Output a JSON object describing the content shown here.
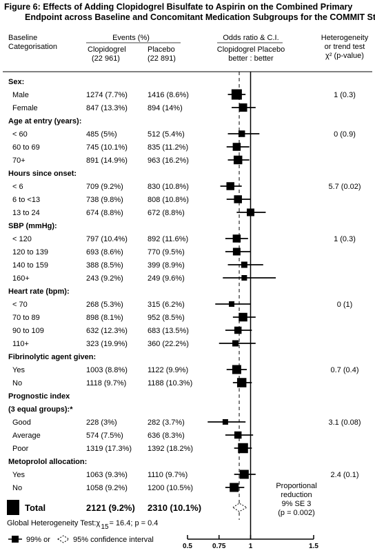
{
  "title_lines": [
    "Figure 6: Effects of Adding Clopidogrel Bisulfate to Aspirin on the Combined Primary",
    "Endpoint across Baseline and Concomitant Medication Subgroups for the COMMIT Study"
  ],
  "headers": {
    "baseline": [
      "Baseline",
      "Categorisation"
    ],
    "events": "Events (%)",
    "clop": [
      "Clopidogrel",
      "(22 961)"
    ],
    "plac": [
      "Placebo",
      "(22 891)"
    ],
    "or": "Odds ratio & C.I.",
    "favor": [
      "Clopidogrel Placebo",
      "better : better"
    ],
    "het": [
      "Heterogeneity",
      "or trend test",
      "χ² (p-value)"
    ]
  },
  "chart_data": {
    "type": "forest",
    "x_axis": {
      "min": 0.5,
      "max": 1.5,
      "ticks": [
        0.5,
        0.75,
        1,
        1.5
      ],
      "tick_labels": [
        "0.5",
        "0.75",
        "1",
        "1.5"
      ]
    },
    "reference_line": 1,
    "overall_dashed_line": 0.91,
    "groups": [
      {
        "label": "Sex:",
        "het": "1 (0.3)",
        "rows": [
          {
            "label": "Male",
            "clop": "1274 (7.7%)",
            "plac": "1416 (8.6%)",
            "or": 0.89,
            "lo": 0.82,
            "hi": 0.96,
            "weight": 1.0
          },
          {
            "label": "Female",
            "clop": "847 (13.3%)",
            "plac": "894 (14%)",
            "or": 0.94,
            "lo": 0.85,
            "hi": 1.04,
            "weight": 0.7
          }
        ]
      },
      {
        "label": "Age at entry (years):",
        "het": "0 (0.9)",
        "rows": [
          {
            "label": "< 60",
            "clop": "485 (5%)",
            "plac": "512 (5.4%)",
            "or": 0.93,
            "lo": 0.82,
            "hi": 1.07,
            "weight": 0.45
          },
          {
            "label": "60 to 69",
            "clop": "745 (10.1%)",
            "plac": "835 (11.2%)",
            "or": 0.89,
            "lo": 0.81,
            "hi": 0.99,
            "weight": 0.65
          },
          {
            "label": "70+",
            "clop": "891 (14.9%)",
            "plac": "963 (16.2%)",
            "or": 0.9,
            "lo": 0.82,
            "hi": 0.99,
            "weight": 0.75
          }
        ]
      },
      {
        "label": "Hours since onset:",
        "het": "5.7 (0.02)",
        "rows": [
          {
            "label": "< 6",
            "clop": "709 (9.2%)",
            "plac": "830 (10.8%)",
            "or": 0.84,
            "lo": 0.76,
            "hi": 0.93,
            "weight": 0.65
          },
          {
            "label": "6 to <13",
            "clop": "738 (9.8%)",
            "plac": "808 (10.8%)",
            "or": 0.9,
            "lo": 0.81,
            "hi": 1.0,
            "weight": 0.65
          },
          {
            "label": "13 to 24",
            "clop": "674 (8.8%)",
            "plac": "672 (8.8%)",
            "or": 1.0,
            "lo": 0.89,
            "hi": 1.12,
            "weight": 0.6
          }
        ]
      },
      {
        "label": "SBP (mmHg):",
        "het": "1 (0.3)",
        "rows": [
          {
            "label": "< 120",
            "clop": "797 (10.4%)",
            "plac": "892 (11.6%)",
            "or": 0.89,
            "lo": 0.8,
            "hi": 0.98,
            "weight": 0.65
          },
          {
            "label": "120 to 139",
            "clop": "693 (8.6%)",
            "plac": "770 (9.5%)",
            "or": 0.89,
            "lo": 0.8,
            "hi": 1.0,
            "weight": 0.6
          },
          {
            "label": "140 to 159",
            "clop": "388 (8.5%)",
            "plac": "399 (8.9%)",
            "or": 0.95,
            "lo": 0.82,
            "hi": 1.1,
            "weight": 0.4
          },
          {
            "label": "160+",
            "clop": "243 (9.2%)",
            "plac": "249 (9.6%)",
            "or": 0.95,
            "lo": 0.78,
            "hi": 1.2,
            "weight": 0.3
          }
        ]
      },
      {
        "label": "Heart rate (bpm):",
        "het": "0 (1)",
        "rows": [
          {
            "label": "< 70",
            "clop": "268 (5.3%)",
            "plac": "315 (6.2%)",
            "or": 0.85,
            "lo": 0.72,
            "hi": 1.0,
            "weight": 0.3
          },
          {
            "label": "70 to 89",
            "clop": "898 (8.1%)",
            "plac": "952 (8.5%)",
            "or": 0.94,
            "lo": 0.86,
            "hi": 1.04,
            "weight": 0.75
          },
          {
            "label": "90 to 109",
            "clop": "632 (12.3%)",
            "plac": "683 (13.5%)",
            "or": 0.9,
            "lo": 0.8,
            "hi": 1.01,
            "weight": 0.55
          },
          {
            "label": "110+",
            "clop": "323 (19.9%)",
            "plac": "360 (22.2%)",
            "or": 0.88,
            "lo": 0.75,
            "hi": 1.04,
            "weight": 0.4
          }
        ]
      },
      {
        "label": "Fibrinolytic agent given:",
        "het": "0.7 (0.4)",
        "rows": [
          {
            "label": "Yes",
            "clop": "1003 (8.8%)",
            "plac": "1122 (9.9%)",
            "or": 0.89,
            "lo": 0.81,
            "hi": 0.97,
            "weight": 0.8
          },
          {
            "label": "No",
            "clop": "1118 (9.7%)",
            "plac": "1188 (10.3%)",
            "or": 0.93,
            "lo": 0.86,
            "hi": 1.01,
            "weight": 0.85
          }
        ]
      },
      {
        "label": "Prognostic index",
        "sublabel": "(3 equal groups):*",
        "het": "3.1 (0.08)",
        "rows": [
          {
            "label": "Good",
            "clop": "228 (3%)",
            "plac": "282 (3.7%)",
            "or": 0.8,
            "lo": 0.66,
            "hi": 0.96,
            "weight": 0.3
          },
          {
            "label": "Average",
            "clop": "574 (7.5%)",
            "plac": "636 (8.3%)",
            "or": 0.9,
            "lo": 0.8,
            "hi": 1.02,
            "weight": 0.55
          },
          {
            "label": "Poor",
            "clop": "1319 (17.3%)",
            "plac": "1392 (18.2%)",
            "or": 0.94,
            "lo": 0.87,
            "hi": 1.01,
            "weight": 0.95
          }
        ]
      },
      {
        "label": "Metoprolol allocation:",
        "het": "2.4 (0.1)",
        "rows": [
          {
            "label": "Yes",
            "clop": "1063 (9.3%)",
            "plac": "1110 (9.7%)",
            "or": 0.95,
            "lo": 0.87,
            "hi": 1.04,
            "weight": 0.8
          },
          {
            "label": "No",
            "clop": "1058 (9.2%)",
            "plac": "1200 (10.5%)",
            "or": 0.87,
            "lo": 0.8,
            "hi": 0.95,
            "weight": 0.8
          }
        ]
      }
    ],
    "total": {
      "label": "Total",
      "clop": "2121 (9.2%)",
      "plac": "2310 (10.1%)",
      "or": 0.91,
      "lo": 0.86,
      "hi": 0.97
    },
    "proportional_reduction": [
      "Proportional",
      "reduction",
      "9% SE 3",
      "(p = 0.002)"
    ],
    "global_heterogeneity": {
      "prefix": "Global Heterogeneity Test: ",
      "chi_sub": "15",
      "value": "= 16.4; p = 0.4"
    },
    "legend": {
      "ci99": "99% or",
      "ci95": "95% confidence interval"
    }
  }
}
